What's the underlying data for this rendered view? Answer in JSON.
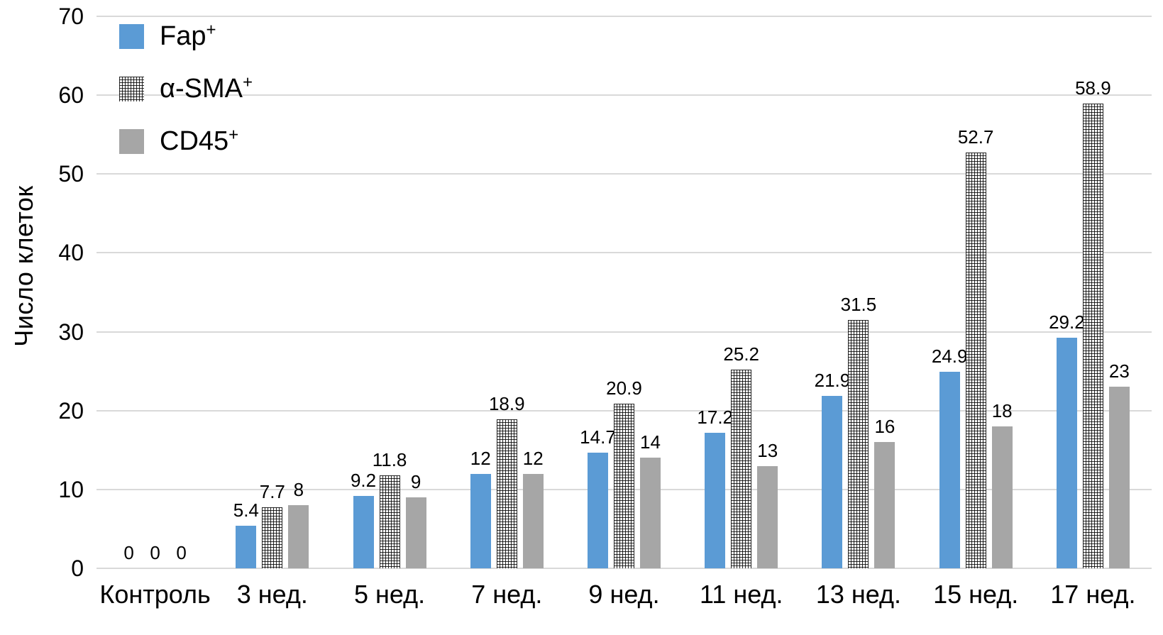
{
  "chart_data": {
    "type": "bar",
    "title": "",
    "xlabel": "",
    "ylabel": "Число клеток",
    "ylim": [
      0,
      70
    ],
    "yticks": [
      0,
      10,
      20,
      30,
      40,
      50,
      60,
      70
    ],
    "grid": true,
    "legend_position": "top-left",
    "data_labels": true,
    "categories": [
      "Контроль",
      "3 нед.",
      "5 нед.",
      "7 нед.",
      "9 нед.",
      "11 нед.",
      "13 нед.",
      "15 нед.",
      "17 нед."
    ],
    "series": [
      {
        "name": "Fap",
        "name_sup": "+",
        "pattern": "solid",
        "color": "#5B9BD5",
        "values": [
          0,
          5.4,
          9.2,
          12,
          14.7,
          17.2,
          21.9,
          24.9,
          29.2
        ],
        "labels": [
          "0",
          "5.4",
          "9.2",
          "12",
          "14.7",
          "17.2",
          "21.9",
          "24.9",
          "29.2"
        ]
      },
      {
        "name": "α-SMA",
        "name_sup": "+",
        "pattern": "crosshatch",
        "color": "#111111",
        "values": [
          0,
          7.7,
          11.8,
          18.9,
          20.9,
          25.2,
          31.5,
          52.7,
          58.9
        ],
        "labels": [
          "0",
          "7.7",
          "11.8",
          "18.9",
          "20.9",
          "25.2",
          "31.5",
          "52.7",
          "58.9"
        ]
      },
      {
        "name": "CD45",
        "name_sup": "+",
        "pattern": "solid",
        "color": "#A6A6A6",
        "values": [
          0,
          8,
          9,
          12,
          14,
          13,
          16,
          18,
          23
        ],
        "labels": [
          "0",
          "8",
          "9",
          "12",
          "14",
          "13",
          "16",
          "18",
          "23"
        ]
      }
    ]
  },
  "style": {
    "background": "#FFFFFF",
    "grid_color": "#D9D9D9",
    "text_color": "#000000"
  }
}
